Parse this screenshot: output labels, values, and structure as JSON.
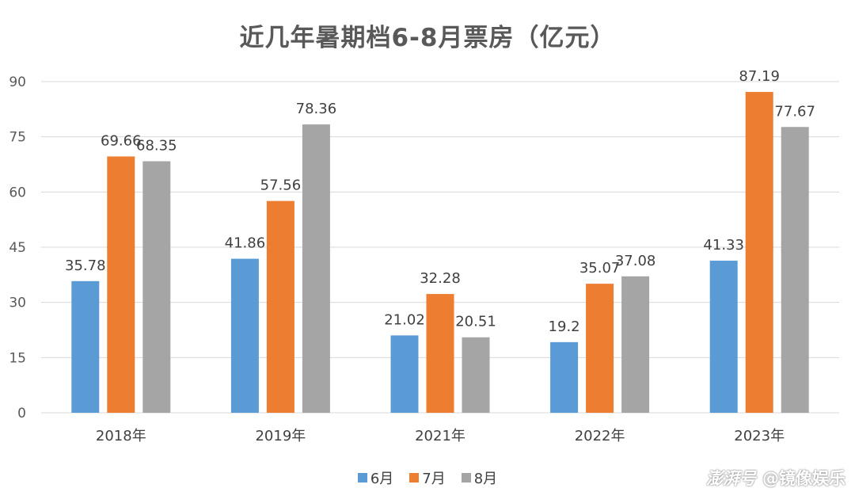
{
  "chart_data": {
    "type": "bar",
    "title": "近几年暑期档6-8月票房（亿元）",
    "categories": [
      "2018年",
      "2019年",
      "2021年",
      "2022年",
      "2023年"
    ],
    "series": [
      {
        "name": "6月",
        "color": "#5B9BD5",
        "values": [
          35.78,
          41.86,
          21.02,
          19.2,
          41.33
        ],
        "labels": [
          "35.78",
          "41.86",
          "21.02",
          "19.2",
          "41.33"
        ]
      },
      {
        "name": "7月",
        "color": "#ED7D31",
        "values": [
          69.66,
          57.56,
          32.28,
          35.07,
          87.19
        ],
        "labels": [
          "69.66",
          "57.56",
          "32.28",
          "35.07",
          "87.19"
        ]
      },
      {
        "name": "8月",
        "color": "#A5A5A5",
        "values": [
          68.35,
          78.36,
          20.51,
          37.08,
          77.67
        ],
        "labels": [
          "68.35",
          "78.36",
          "20.51",
          "37.08",
          "77.67"
        ]
      }
    ],
    "ylim": [
      0,
      90
    ],
    "yticks": [
      0,
      15,
      30,
      45,
      60,
      75,
      90
    ],
    "grid": true,
    "legend_position": "bottom"
  },
  "watermark": {
    "brand": "澎湃号",
    "account": "@镜像娱乐"
  }
}
